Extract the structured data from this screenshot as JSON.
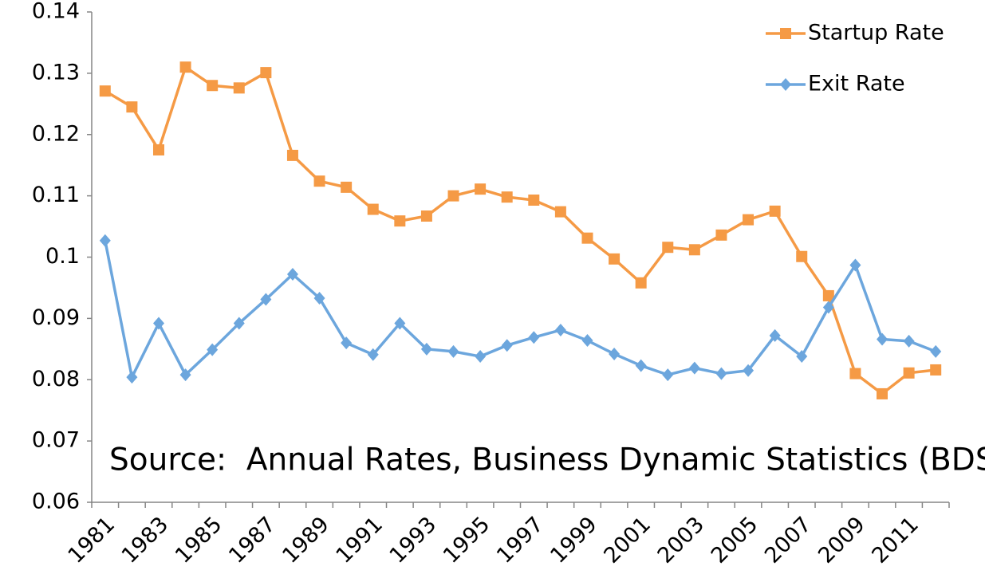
{
  "chart_data": {
    "type": "line",
    "annotation": "Source:  Annual Rates, Business Dynamic Statistics (BDS)",
    "categories": [
      "1981",
      null,
      "1983",
      null,
      "1985",
      null,
      "1987",
      null,
      "1989",
      null,
      "1991",
      null,
      "1993",
      null,
      "1995",
      null,
      "1997",
      null,
      "1999",
      null,
      "2001",
      null,
      "2003",
      null,
      "2005",
      null,
      "2007",
      null,
      "2009",
      null,
      "2011",
      null
    ],
    "series": [
      {
        "name": "Startup Rate",
        "color": "#f59a45",
        "marker": "square",
        "values": [
          0.1271,
          0.1245,
          0.1175,
          0.131,
          0.128,
          0.1276,
          0.1301,
          0.1166,
          0.1124,
          0.1114,
          0.1078,
          0.1059,
          0.1067,
          0.11,
          0.1111,
          0.1098,
          0.1093,
          0.1074,
          0.1031,
          0.0997,
          0.0958,
          0.1016,
          0.1012,
          0.1036,
          0.1061,
          0.1075,
          0.1001,
          0.0937,
          0.081,
          0.0777,
          0.0811,
          0.0816
        ]
      },
      {
        "name": "Exit Rate",
        "color": "#6ca6dd",
        "marker": "diamond",
        "values": [
          0.1027,
          0.0804,
          0.0892,
          0.0808,
          0.0849,
          0.0892,
          0.0931,
          0.0972,
          0.0933,
          0.086,
          0.0841,
          0.0892,
          0.085,
          0.0846,
          0.0838,
          0.0856,
          0.0869,
          0.0881,
          0.0864,
          0.0842,
          0.0823,
          0.0808,
          0.0819,
          0.081,
          0.0815,
          0.0872,
          0.0838,
          0.0918,
          0.0987,
          0.0866,
          0.0863,
          0.0846
        ]
      }
    ],
    "ylim": [
      0.06,
      0.14
    ],
    "yticks": [
      0.06,
      0.07,
      0.08,
      0.09,
      0.1,
      0.11,
      0.12,
      0.13,
      0.14
    ],
    "grid": false,
    "legend": "top-right"
  }
}
